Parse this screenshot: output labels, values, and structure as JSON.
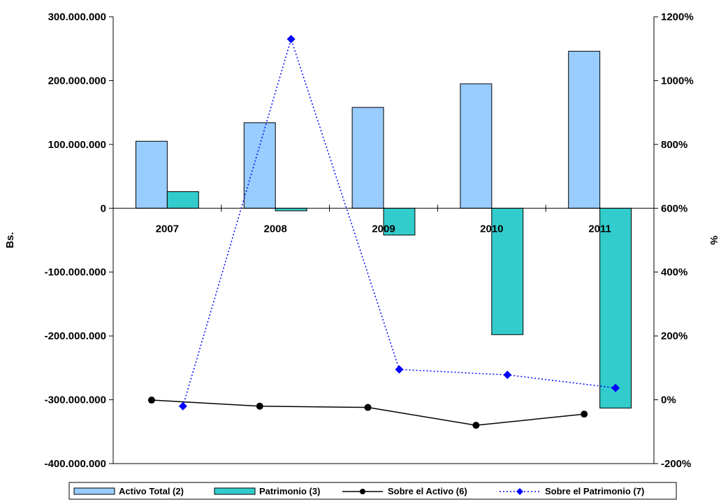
{
  "chart_data": {
    "type": "bar",
    "categories": [
      "2007",
      "2008",
      "2009",
      "2010",
      "2011"
    ],
    "left_axis": {
      "label": "Bs.",
      "ylim": [
        -400000000,
        300000000
      ],
      "ticks": [
        300000000,
        200000000,
        100000000,
        0,
        -100000000,
        -200000000,
        -300000000,
        -400000000
      ],
      "tick_labels": [
        "300.000.000",
        "200.000.000",
        "100.000.000",
        "0",
        "-100.000.000",
        "-200.000.000",
        "-300.000.000",
        "-400.000.000"
      ]
    },
    "right_axis": {
      "label": "%",
      "ylim": [
        -200,
        1200
      ],
      "ticks": [
        1200,
        1000,
        800,
        600,
        400,
        200,
        0,
        -200
      ],
      "tick_labels": [
        "1200%",
        "1000%",
        "800%",
        "600%",
        "400%",
        "200%",
        "0%",
        "-200%"
      ]
    },
    "bar_series": [
      {
        "name": "Activo Total (2)",
        "color": "#99ccff",
        "values": [
          105000000,
          134000000,
          158000000,
          195000000,
          246000000
        ]
      },
      {
        "name": "Patrimonio (3)",
        "color": "#33cccc",
        "values": [
          26000000,
          -4000000,
          -42000000,
          -198000000,
          -313000000
        ]
      }
    ],
    "line_series": [
      {
        "name": "Sobre el Activo (6)",
        "color": "#000000",
        "style": "solid",
        "marker": "circle",
        "values": [
          -1,
          -20,
          -24,
          -80,
          -45
        ]
      },
      {
        "name": "Sobre el Patrimonio (7)",
        "color": "#0000ff",
        "style": "dotted",
        "marker": "diamond",
        "values": [
          -20,
          1130,
          95,
          78,
          37
        ]
      }
    ],
    "grid": false,
    "legend_position": "bottom"
  }
}
